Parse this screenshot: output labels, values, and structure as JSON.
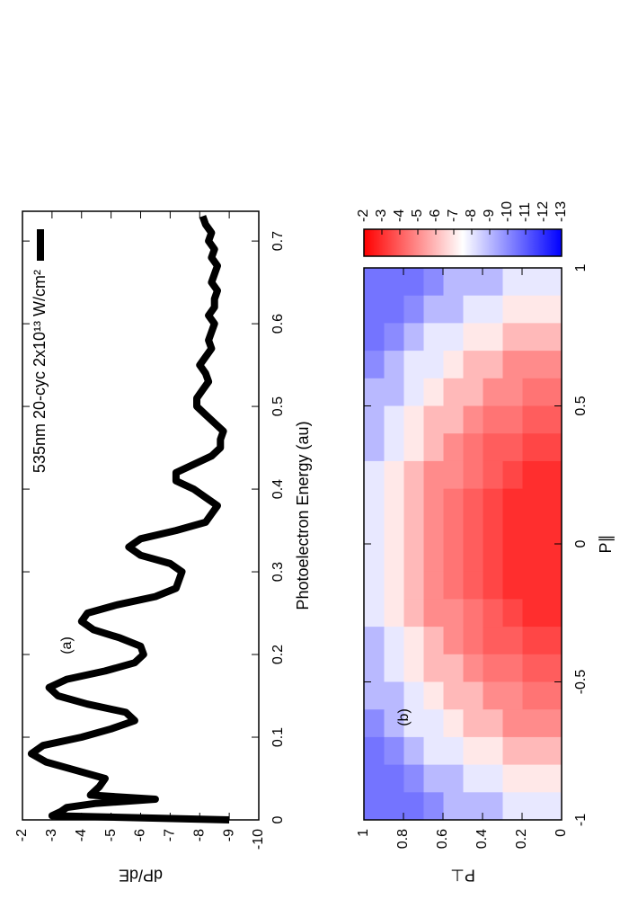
{
  "chart_data": [
    {
      "type": "line",
      "xlabel": "Photoelectron Energy (au)",
      "ylabel": "dP/dE",
      "annotation": "(a)",
      "x": [
        0,
        0.005,
        0.01,
        0.015,
        0.02,
        0.025,
        0.03,
        0.04,
        0.05,
        0.06,
        0.07,
        0.08,
        0.09,
        0.1,
        0.11,
        0.12,
        0.13,
        0.14,
        0.15,
        0.16,
        0.17,
        0.18,
        0.19,
        0.2,
        0.21,
        0.22,
        0.23,
        0.24,
        0.25,
        0.26,
        0.27,
        0.28,
        0.29,
        0.3,
        0.31,
        0.32,
        0.33,
        0.34,
        0.35,
        0.36,
        0.37,
        0.38,
        0.39,
        0.4,
        0.41,
        0.42,
        0.43,
        0.44,
        0.45,
        0.46,
        0.47,
        0.48,
        0.49,
        0.5,
        0.51,
        0.52,
        0.53,
        0.54,
        0.55,
        0.56,
        0.57,
        0.58,
        0.59,
        0.6,
        0.61,
        0.62,
        0.63,
        0.64,
        0.65,
        0.66,
        0.67,
        0.68,
        0.69,
        0.7,
        0.71,
        0.72,
        0.73
      ],
      "series": [
        {
          "name": "535nm 20-cyc 2x10¹³ W/cm²",
          "color": "#000000",
          "values": [
            -9,
            -3,
            -3.3,
            -3.5,
            -4.5,
            -6.5,
            -4.3,
            -4.6,
            -4.8,
            -3.8,
            -2.8,
            -2.3,
            -2.7,
            -4,
            -5,
            -5.8,
            -5.5,
            -4.2,
            -3.2,
            -2.9,
            -3.5,
            -4.8,
            -5.8,
            -6.1,
            -6,
            -5.3,
            -4.4,
            -4,
            -4.2,
            -5.2,
            -6.5,
            -7.2,
            -7.3,
            -7.4,
            -7,
            -6,
            -5.6,
            -6,
            -7.2,
            -8.2,
            -8.4,
            -8.6,
            -8.2,
            -7.8,
            -7.2,
            -7.2,
            -7.8,
            -8.4,
            -8.7,
            -8.7,
            -8.8,
            -8.5,
            -8.2,
            -7.9,
            -7.9,
            -8.1,
            -8.3,
            -8.2,
            -8,
            -8.2,
            -8.4,
            -8.3,
            -8.4,
            -8.5,
            -8.3,
            -8.5,
            -8.5,
            -8.6,
            -8.4,
            -8.5,
            -8.6,
            -8.4,
            -8.5,
            -8.3,
            -8.4,
            -8.2,
            -8.1
          ]
        }
      ],
      "xlim": [
        0,
        0.736
      ],
      "xticks": [
        0,
        0.1,
        0.2,
        0.3,
        0.4,
        0.5,
        0.6,
        0.7
      ],
      "ylim": [
        -10,
        -2
      ],
      "yticks": [
        -2,
        -3,
        -4,
        -5,
        -6,
        -7,
        -8,
        -9,
        -10
      ],
      "legend": "upper right"
    },
    {
      "type": "heatmap",
      "xlabel": "P∥",
      "ylabel": "P⊥",
      "annotation": "(b)",
      "x": [
        -0.95,
        -0.85,
        -0.75,
        -0.65,
        -0.55,
        -0.45,
        -0.35,
        -0.25,
        -0.15,
        -0.05,
        0.05,
        0.15,
        0.25,
        0.35,
        0.45,
        0.55,
        0.65,
        0.75,
        0.85,
        0.95
      ],
      "y": [
        0.05,
        0.15,
        0.25,
        0.35,
        0.45,
        0.55,
        0.65,
        0.75,
        0.85,
        0.95
      ],
      "z": [
        [
          -8,
          -7,
          -6,
          -5,
          -4.5,
          -4,
          -3.5,
          -3,
          -3,
          -3,
          -3,
          -3,
          -3,
          -3.5,
          -4,
          -4.5,
          -5,
          -6,
          -7,
          -8
        ],
        [
          -8,
          -7,
          -6,
          -5,
          -4.5,
          -4,
          -3.5,
          -3,
          -3,
          -3,
          -3,
          -3,
          -3,
          -3.5,
          -4,
          -4.5,
          -5,
          -6,
          -7,
          -8
        ],
        [
          -8,
          -7,
          -6,
          -5,
          -5,
          -4.5,
          -4,
          -3.5,
          -3,
          -3,
          -3,
          -3,
          -3.5,
          -4,
          -4.5,
          -5,
          -5,
          -6,
          -7,
          -8
        ],
        [
          -9,
          -8,
          -7,
          -6,
          -5,
          -4.5,
          -4,
          -4,
          -3.5,
          -3.5,
          -3.5,
          -3.5,
          -4,
          -4,
          -4.5,
          -5,
          -6,
          -7,
          -8,
          -9
        ],
        [
          -9,
          -8,
          -7,
          -6,
          -6,
          -5,
          -4.5,
          -4.5,
          -4,
          -4,
          -4,
          -4,
          -4.5,
          -4.5,
          -5,
          -6,
          -6,
          -7,
          -8,
          -9
        ],
        [
          -9,
          -9,
          -8,
          -7,
          -6,
          -6,
          -5,
          -5,
          -4.5,
          -4.5,
          -4.5,
          -4.5,
          -5,
          -5,
          -6,
          -6,
          -7,
          -8,
          -9,
          -9
        ],
        [
          -10,
          -9,
          -8,
          -8,
          -7,
          -6,
          -6,
          -5,
          -5,
          -5,
          -5,
          -5,
          -5,
          -6,
          -6,
          -7,
          -8,
          -8,
          -9,
          -10
        ],
        [
          -10.5,
          -10,
          -9,
          -8,
          -8,
          -7,
          -7,
          -6,
          -6,
          -6,
          -6,
          -6,
          -6,
          -7,
          -7,
          -8,
          -8,
          -9,
          -10,
          -10.5
        ],
        [
          -10.5,
          -10.5,
          -10,
          -9,
          -9,
          -8,
          -8,
          -7,
          -7,
          -7,
          -7,
          -7,
          -7,
          -8,
          -8,
          -9,
          -9,
          -10,
          -10.5,
          -10.5
        ],
        [
          -10.5,
          -10.5,
          -10.5,
          -10,
          -9,
          -9,
          -9,
          -8,
          -8,
          -8,
          -8,
          -8,
          -8,
          -9,
          -9,
          -9,
          -10,
          -10.5,
          -10.5,
          -10.5
        ]
      ],
      "xlim": [
        -1,
        1
      ],
      "xticks": [
        -1,
        -0.5,
        0,
        0.5,
        1
      ],
      "ylim": [
        0,
        1
      ],
      "yticks": [
        0,
        0.2,
        0.4,
        0.6,
        0.8,
        1
      ],
      "zlim": [
        -13,
        -2
      ],
      "zticks": [
        -2,
        -3,
        -4,
        -5,
        -6,
        -7,
        -8,
        -9,
        -10,
        -11,
        -12,
        -13
      ],
      "colormap": [
        "#0000ff",
        "#ffffff",
        "#ff0000"
      ]
    }
  ]
}
